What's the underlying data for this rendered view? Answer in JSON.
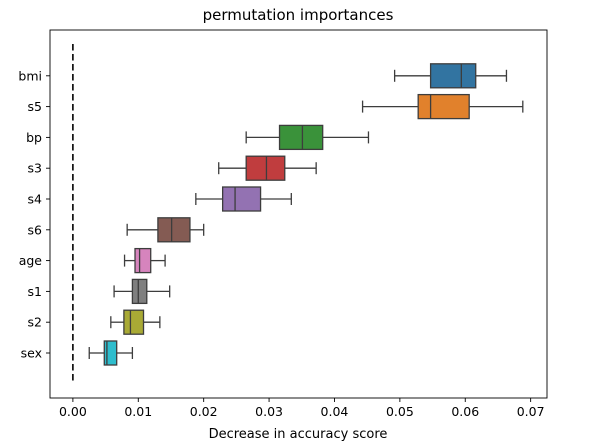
{
  "chart_data": {
    "type": "boxplot",
    "orientation": "horizontal",
    "title": "permutation importances",
    "xlabel": "Decrease in accuracy score",
    "ylabel": "",
    "xlim": [
      -0.0035,
      0.0725
    ],
    "x_ticks": [
      "0.00",
      "0.01",
      "0.02",
      "0.03",
      "0.04",
      "0.05",
      "0.06",
      "0.07"
    ],
    "x_tick_values": [
      0.0,
      0.01,
      0.02,
      0.03,
      0.04,
      0.05,
      0.06,
      0.07
    ],
    "reference_line": {
      "x": 0.0,
      "style": "dashed",
      "color": "#000000"
    },
    "boxes": [
      {
        "label": "bmi",
        "whisker_low": 0.0492,
        "q1": 0.0547,
        "median": 0.0594,
        "q3": 0.0616,
        "whisker_high": 0.0663,
        "color": "#3274a1"
      },
      {
        "label": "s5",
        "whisker_low": 0.0443,
        "q1": 0.0528,
        "median": 0.0547,
        "q3": 0.0606,
        "whisker_high": 0.0688,
        "color": "#e1812c"
      },
      {
        "label": "bp",
        "whisker_low": 0.0265,
        "q1": 0.0316,
        "median": 0.0351,
        "q3": 0.0382,
        "whisker_high": 0.0452,
        "color": "#3a923a"
      },
      {
        "label": "s3",
        "whisker_low": 0.0223,
        "q1": 0.0265,
        "median": 0.0296,
        "q3": 0.0324,
        "whisker_high": 0.0372,
        "color": "#c03d3e"
      },
      {
        "label": "s4",
        "whisker_low": 0.0188,
        "q1": 0.0229,
        "median": 0.0248,
        "q3": 0.0287,
        "whisker_high": 0.0334,
        "color": "#9372b2"
      },
      {
        "label": "s6",
        "whisker_low": 0.0083,
        "q1": 0.013,
        "median": 0.0151,
        "q3": 0.0179,
        "whisker_high": 0.02,
        "color": "#845b53"
      },
      {
        "label": "age",
        "whisker_low": 0.0079,
        "q1": 0.0095,
        "median": 0.0102,
        "q3": 0.0119,
        "whisker_high": 0.0141,
        "color": "#d684bd"
      },
      {
        "label": "s1",
        "whisker_low": 0.0063,
        "q1": 0.0091,
        "median": 0.01,
        "q3": 0.0113,
        "whisker_high": 0.0148,
        "color": "#7f7f7f"
      },
      {
        "label": "s2",
        "whisker_low": 0.0058,
        "q1": 0.0078,
        "median": 0.0088,
        "q3": 0.0108,
        "whisker_high": 0.0133,
        "color": "#a9aa35"
      },
      {
        "label": "sex",
        "whisker_low": 0.0025,
        "q1": 0.0048,
        "median": 0.0052,
        "q3": 0.0067,
        "whisker_high": 0.0091,
        "color": "#2ebdcd"
      }
    ],
    "grid": false,
    "legend": "none"
  }
}
